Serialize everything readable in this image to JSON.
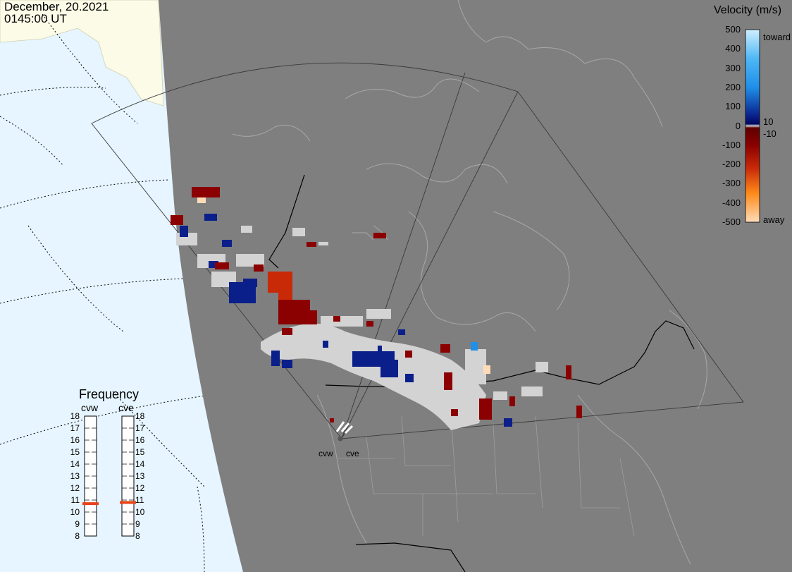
{
  "timestamp": {
    "date": "December, 20.2021",
    "time": "0145:00 UT"
  },
  "colorbar": {
    "title": "Velocity (m/s)",
    "ticks": [
      "500",
      "400",
      "300",
      "200",
      "100",
      "0",
      "-100",
      "-200",
      "-300",
      "-400",
      "-500"
    ],
    "side_labels": {
      "toward": "toward",
      "away": "away",
      "pos_threshold": "10",
      "neg_threshold": "-10"
    },
    "colors": {
      "toward_light": "#cfeeff",
      "toward_mid": "#1f8fe8",
      "toward_dark": "#0a1f8a",
      "away_dark": "#8b0000",
      "away_mid": "#e8560a",
      "away_light": "#ffdcb8"
    }
  },
  "frequency_panel": {
    "title": "Frequency",
    "radars": [
      "cvw",
      "cve"
    ],
    "scale": [
      "18",
      "17",
      "16",
      "15",
      "14",
      "13",
      "12",
      "11",
      "10",
      "9",
      "8"
    ],
    "marker_color": "#e8441a",
    "current_mhz": {
      "cvw": 10.7,
      "cve": 10.8
    }
  },
  "stations": {
    "west": "cvw",
    "east": "cve"
  },
  "map_colors": {
    "night": "#7f7f7f",
    "ocean": "#e6f5ff",
    "land": "#fbfbe8",
    "ground_scatter": "#d3d3d3",
    "borders": "#000000",
    "coastlines": "#b8b8b8"
  }
}
